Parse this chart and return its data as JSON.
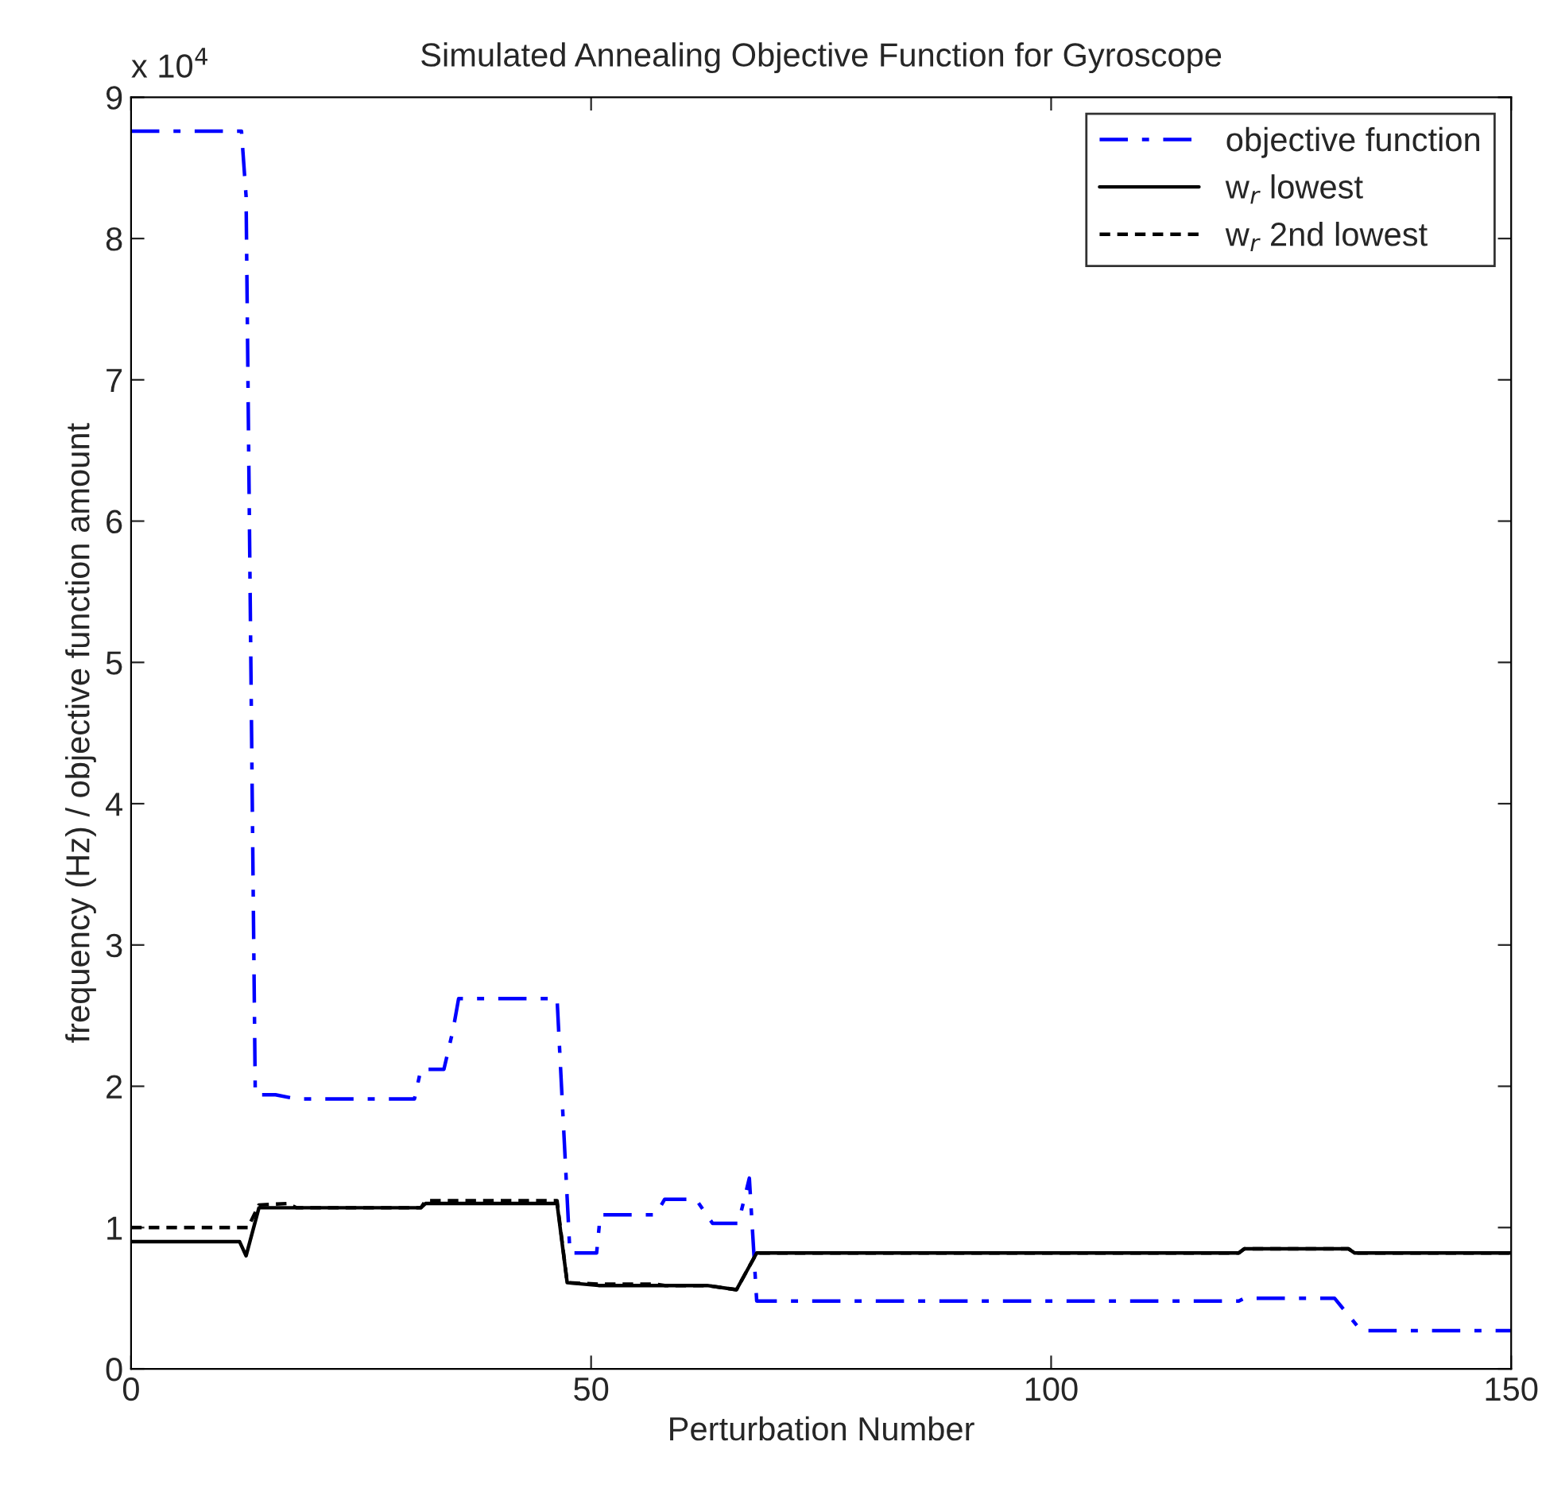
{
  "chart_data": {
    "type": "line",
    "title": "Simulated Annealing Objective Function for Gyroscope",
    "xlabel": "Perturbation Number",
    "ylabel": "frequency (Hz) / objective function amount",
    "annotations": [
      "x 10$^{4}$"
    ],
    "xlim": [
      0,
      150
    ],
    "xticks": [
      0,
      50,
      100,
      150
    ],
    "ylim": [
      0,
      9
    ],
    "yticks": [
      0,
      1,
      2,
      3,
      4,
      5,
      6,
      7,
      8,
      9
    ],
    "grid": false,
    "legend": "top right",
    "marker": "none",
    "series": [
      {
        "name": "objective function",
        "color": "#0000ff",
        "line_style": "dashdot",
        "x": [
          0,
          12,
          12.5,
          13.5,
          15.7,
          18,
          30.8,
          31.5,
          32.9,
          34,
          35,
          35.6,
          46.3,
          47.7,
          50.6,
          51,
          57,
          58,
          60.5,
          61.4,
          63.2,
          66,
          67.2,
          68,
          120.4,
          121,
          130.8,
          133.7,
          150
        ],
        "values": [
          8.76,
          8.76,
          8.3,
          1.94,
          1.94,
          1.91,
          1.91,
          2.12,
          2.12,
          2.12,
          2.4,
          2.62,
          2.62,
          0.82,
          0.82,
          1.09,
          1.09,
          1.2,
          1.2,
          1.2,
          1.03,
          1.03,
          1.35,
          0.48,
          0.48,
          0.5,
          0.5,
          0.27,
          0.27
        ]
      },
      {
        "name": "w$_{r}$ lowest",
        "color": "#000000",
        "line_style": "solid",
        "x": [
          0,
          11.8,
          12.5,
          13.9,
          31.5,
          32,
          46.3,
          47.4,
          50.8,
          62.6,
          65.8,
          68,
          120.4,
          121,
          132.3,
          133,
          150
        ],
        "values": [
          0.9,
          0.9,
          0.8,
          1.14,
          1.14,
          1.17,
          1.17,
          0.61,
          0.59,
          0.59,
          0.56,
          0.82,
          0.82,
          0.85,
          0.85,
          0.82,
          0.82
        ]
      },
      {
        "name": "w$_{r}$ 2nd lowest",
        "color": "#000000",
        "line_style": "dotted",
        "x": [
          0,
          12.7,
          13.9,
          17,
          18,
          31.5,
          32,
          46.3,
          47.4,
          50.8,
          57,
          58,
          62.6,
          65.8,
          68,
          120.4,
          121,
          132.3,
          133,
          150
        ],
        "values": [
          1.0,
          1.0,
          1.16,
          1.17,
          1.14,
          1.14,
          1.19,
          1.19,
          0.61,
          0.6,
          0.6,
          0.59,
          0.59,
          0.56,
          0.82,
          0.82,
          0.85,
          0.85,
          0.82,
          0.82
        ]
      }
    ]
  }
}
